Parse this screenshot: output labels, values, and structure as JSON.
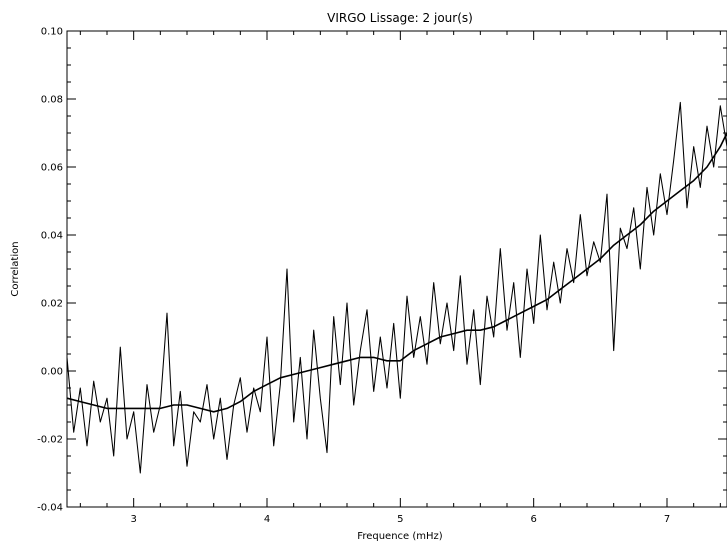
{
  "chart_data": {
    "type": "line",
    "title": "VIRGO Lissage: 2 jour(s)",
    "xlabel": "Frequence (mHz)",
    "ylabel": "Correlation",
    "xlim": [
      2.5,
      7.45
    ],
    "ylim": [
      -0.04,
      0.1
    ],
    "x_ticks": [
      3,
      4,
      5,
      6,
      7
    ],
    "x_tick_labels": [
      "3",
      "4",
      "5",
      "6",
      "7"
    ],
    "y_ticks": [
      -0.04,
      -0.02,
      0.0,
      0.02,
      0.04,
      0.06,
      0.08,
      0.1
    ],
    "y_tick_labels": [
      "-0.04",
      "-0.02",
      "0.00",
      "0.02",
      "0.04",
      "0.06",
      "0.08",
      "0.10"
    ],
    "grid": false,
    "legend": "none",
    "line_color": "#000000",
    "series": [
      {
        "style": "noisy",
        "x": [
          2.5,
          2.55,
          2.6,
          2.65,
          2.7,
          2.75,
          2.8,
          2.85,
          2.9,
          2.95,
          3.0,
          3.05,
          3.1,
          3.15,
          3.2,
          3.25,
          3.3,
          3.35,
          3.4,
          3.45,
          3.5,
          3.55,
          3.6,
          3.65,
          3.7,
          3.75,
          3.8,
          3.85,
          3.9,
          3.95,
          4.0,
          4.05,
          4.1,
          4.15,
          4.2,
          4.25,
          4.3,
          4.35,
          4.4,
          4.45,
          4.5,
          4.55,
          4.6,
          4.65,
          4.7,
          4.75,
          4.8,
          4.85,
          4.9,
          4.95,
          5.0,
          5.05,
          5.1,
          5.15,
          5.2,
          5.25,
          5.3,
          5.35,
          5.4,
          5.45,
          5.5,
          5.55,
          5.6,
          5.65,
          5.7,
          5.75,
          5.8,
          5.85,
          5.9,
          5.95,
          6.0,
          6.05,
          6.1,
          6.15,
          6.2,
          6.25,
          6.3,
          6.35,
          6.4,
          6.45,
          6.5,
          6.55,
          6.6,
          6.65,
          6.7,
          6.75,
          6.8,
          6.85,
          6.9,
          6.95,
          7.0,
          7.05,
          7.1,
          7.15,
          7.2,
          7.25,
          7.3,
          7.35,
          7.4,
          7.45
        ],
        "y": [
          0.004,
          -0.018,
          -0.005,
          -0.022,
          -0.003,
          -0.015,
          -0.008,
          -0.025,
          0.007,
          -0.02,
          -0.012,
          -0.03,
          -0.004,
          -0.018,
          -0.01,
          0.017,
          -0.022,
          -0.006,
          -0.028,
          -0.012,
          -0.015,
          -0.004,
          -0.02,
          -0.008,
          -0.026,
          -0.01,
          -0.002,
          -0.018,
          -0.005,
          -0.012,
          0.01,
          -0.022,
          -0.004,
          0.03,
          -0.015,
          0.004,
          -0.02,
          0.012,
          -0.008,
          -0.024,
          0.016,
          -0.004,
          0.02,
          -0.01,
          0.006,
          0.018,
          -0.006,
          0.01,
          -0.005,
          0.014,
          -0.008,
          0.022,
          0.004,
          0.016,
          0.002,
          0.026,
          0.008,
          0.02,
          0.006,
          0.028,
          0.002,
          0.018,
          -0.004,
          0.022,
          0.01,
          0.036,
          0.012,
          0.026,
          0.004,
          0.03,
          0.014,
          0.04,
          0.018,
          0.032,
          0.02,
          0.036,
          0.026,
          0.046,
          0.028,
          0.038,
          0.032,
          0.052,
          0.006,
          0.042,
          0.036,
          0.048,
          0.03,
          0.054,
          0.04,
          0.058,
          0.046,
          0.062,
          0.079,
          0.048,
          0.066,
          0.054,
          0.072,
          0.06,
          0.078,
          0.066
        ]
      },
      {
        "style": "smoothed",
        "x": [
          2.5,
          2.6,
          2.7,
          2.8,
          2.9,
          3.0,
          3.1,
          3.2,
          3.3,
          3.4,
          3.5,
          3.6,
          3.7,
          3.8,
          3.9,
          4.0,
          4.1,
          4.2,
          4.3,
          4.4,
          4.5,
          4.6,
          4.7,
          4.8,
          4.9,
          5.0,
          5.1,
          5.2,
          5.3,
          5.4,
          5.5,
          5.6,
          5.7,
          5.8,
          5.9,
          6.0,
          6.1,
          6.2,
          6.3,
          6.4,
          6.5,
          6.6,
          6.7,
          6.8,
          6.9,
          7.0,
          7.1,
          7.2,
          7.3,
          7.4,
          7.45
        ],
        "y": [
          -0.008,
          -0.009,
          -0.01,
          -0.011,
          -0.011,
          -0.011,
          -0.011,
          -0.011,
          -0.01,
          -0.01,
          -0.011,
          -0.012,
          -0.011,
          -0.009,
          -0.006,
          -0.004,
          -0.002,
          -0.001,
          0.0,
          0.001,
          0.002,
          0.003,
          0.004,
          0.004,
          0.003,
          0.003,
          0.006,
          0.008,
          0.01,
          0.011,
          0.012,
          0.012,
          0.013,
          0.015,
          0.017,
          0.019,
          0.021,
          0.024,
          0.027,
          0.03,
          0.033,
          0.037,
          0.04,
          0.043,
          0.047,
          0.05,
          0.053,
          0.056,
          0.06,
          0.066,
          0.07
        ]
      }
    ]
  }
}
